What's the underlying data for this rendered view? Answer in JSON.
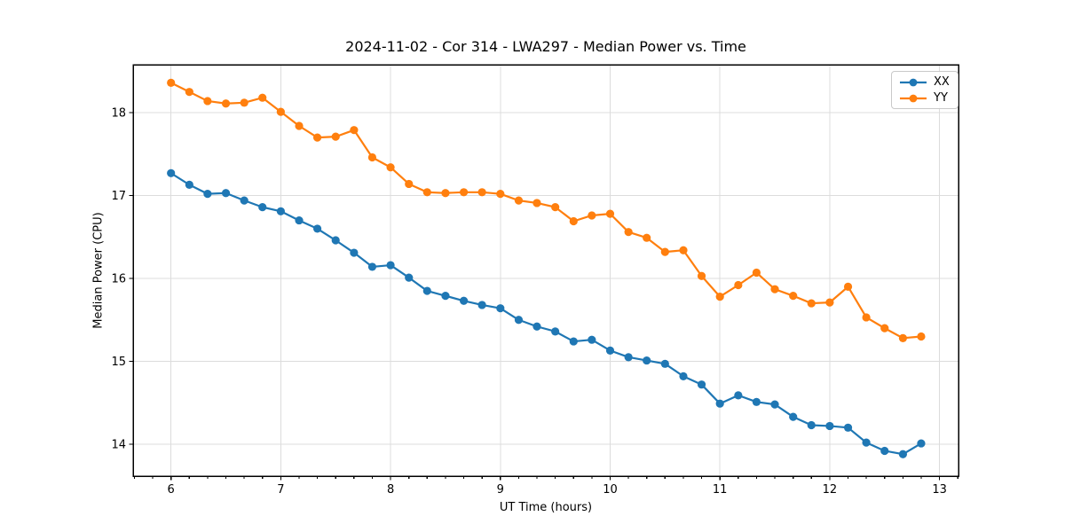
{
  "chart_data": {
    "type": "line",
    "title": "2024-11-02 - Cor 314 - LWA297 - Median Power vs. Time",
    "xlabel": "UT Time (hours)",
    "ylabel": "Median Power (CPU)",
    "xlim": [
      5.655,
      13.173
    ],
    "ylim": [
      13.615,
      18.578
    ],
    "x_ticks": [
      6,
      7,
      8,
      9,
      10,
      11,
      12,
      13
    ],
    "y_ticks": [
      14,
      15,
      16,
      17,
      18
    ],
    "x_minor_step": 0.1666667,
    "grid": true,
    "grid_color": "#dcdcdc",
    "legend_position": "upper right",
    "x": [
      6.0,
      6.167,
      6.333,
      6.5,
      6.667,
      6.833,
      7.0,
      7.167,
      7.333,
      7.5,
      7.667,
      7.833,
      8.0,
      8.167,
      8.333,
      8.5,
      8.667,
      8.833,
      9.0,
      9.167,
      9.333,
      9.5,
      9.667,
      9.833,
      10.0,
      10.167,
      10.333,
      10.5,
      10.667,
      10.833,
      11.0,
      11.167,
      11.333,
      11.5,
      11.667,
      11.833,
      12.0,
      12.167,
      12.333,
      12.5,
      12.667,
      12.833
    ],
    "series": [
      {
        "name": "XX",
        "color": "#1f77b4",
        "values": [
          17.27,
          17.13,
          17.02,
          17.03,
          16.94,
          16.86,
          16.81,
          16.7,
          16.6,
          16.46,
          16.31,
          16.14,
          16.16,
          16.01,
          15.85,
          15.79,
          15.73,
          15.68,
          15.64,
          15.5,
          15.42,
          15.36,
          15.24,
          15.26,
          15.13,
          15.05,
          15.01,
          14.97,
          14.82,
          14.72,
          14.49,
          14.59,
          14.51,
          14.48,
          14.33,
          14.23,
          14.22,
          14.2,
          14.02,
          13.92,
          13.88,
          14.01
        ]
      },
      {
        "name": "YY",
        "color": "#ff7f0e",
        "values": [
          18.36,
          18.25,
          18.14,
          18.11,
          18.12,
          18.18,
          18.01,
          17.84,
          17.7,
          17.71,
          17.79,
          17.46,
          17.34,
          17.14,
          17.04,
          17.03,
          17.04,
          17.04,
          17.02,
          16.94,
          16.91,
          16.86,
          16.69,
          16.76,
          16.78,
          16.56,
          16.49,
          16.32,
          16.34,
          16.03,
          15.78,
          15.92,
          16.07,
          15.87,
          15.79,
          15.7,
          15.71,
          15.9,
          15.53,
          15.4,
          15.28,
          15.3
        ]
      }
    ]
  }
}
